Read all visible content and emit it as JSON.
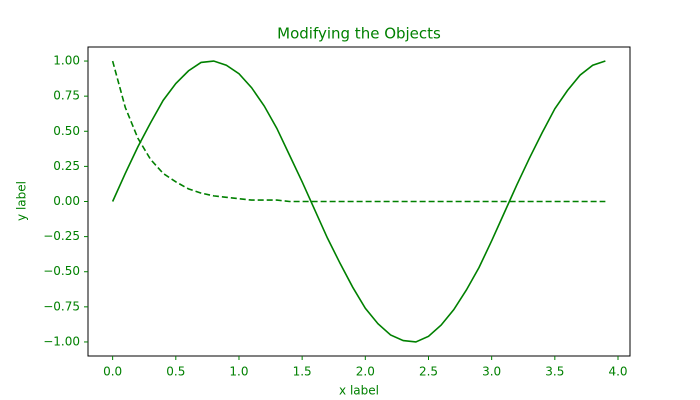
{
  "chart_data": {
    "type": "line",
    "title": "Modifying the Objects",
    "x_label": "x label",
    "y_label": "y label",
    "text_color": "#008000",
    "x": [
      0,
      0.1,
      0.2,
      0.3,
      0.4,
      0.5,
      0.6,
      0.7,
      0.8,
      0.9,
      1.0,
      1.1,
      1.2,
      1.3,
      1.4,
      1.5,
      1.6,
      1.7,
      1.8,
      1.9,
      2.0,
      2.1,
      2.2,
      2.3,
      2.4,
      2.5,
      2.6,
      2.7,
      2.8,
      2.9,
      3.0,
      3.1,
      3.2,
      3.3,
      3.4,
      3.5,
      3.6,
      3.7,
      3.8,
      3.9
    ],
    "series": [
      {
        "color": "#008000",
        "linestyle": "solid",
        "values": [
          0,
          0.2,
          0.39,
          0.56,
          0.72,
          0.84,
          0.93,
          0.99,
          1.0,
          0.97,
          0.91,
          0.81,
          0.68,
          0.52,
          0.33,
          0.14,
          -0.06,
          -0.26,
          -0.44,
          -0.61,
          -0.76,
          -0.87,
          -0.95,
          -0.99,
          -1.0,
          -0.96,
          -0.88,
          -0.77,
          -0.63,
          -0.47,
          -0.28,
          -0.08,
          0.12,
          0.31,
          0.49,
          0.66,
          0.79,
          0.9,
          0.97,
          1.0
        ]
      },
      {
        "color": "#008000",
        "linestyle": "dashed",
        "values": [
          1.0,
          0.67,
          0.45,
          0.3,
          0.2,
          0.14,
          0.09,
          0.06,
          0.04,
          0.03,
          0.02,
          0.01,
          0.01,
          0.01,
          0,
          0,
          0,
          0,
          0,
          0,
          0,
          0,
          0,
          0,
          0,
          0,
          0,
          0,
          0,
          0,
          0,
          0,
          0,
          0,
          0,
          0,
          0,
          0,
          0,
          0
        ]
      }
    ],
    "xlim": [
      -0.195,
      4.095
    ],
    "ylim": [
      -1.1,
      1.1
    ],
    "xticks": [
      {
        "value": 0,
        "label": "0.0"
      },
      {
        "value": 0.5,
        "label": "0.5"
      },
      {
        "value": 1,
        "label": "1.0"
      },
      {
        "value": 1.5,
        "label": "1.5"
      },
      {
        "value": 2,
        "label": "2.0"
      },
      {
        "value": 2.5,
        "label": "2.5"
      },
      {
        "value": 3,
        "label": "3.0"
      },
      {
        "value": 3.5,
        "label": "3.5"
      },
      {
        "value": 4,
        "label": "4.0"
      }
    ],
    "yticks": [
      {
        "value": -1,
        "label": "−1.00"
      },
      {
        "value": -0.75,
        "label": "−0.75"
      },
      {
        "value": -0.5,
        "label": "−0.50"
      },
      {
        "value": -0.25,
        "label": "−0.25"
      },
      {
        "value": 0,
        "label": "0.00"
      },
      {
        "value": 0.25,
        "label": "0.25"
      },
      {
        "value": 0.5,
        "label": "0.50"
      },
      {
        "value": 0.75,
        "label": "0.75"
      },
      {
        "value": 1,
        "label": "1.00"
      }
    ],
    "grid": false
  }
}
